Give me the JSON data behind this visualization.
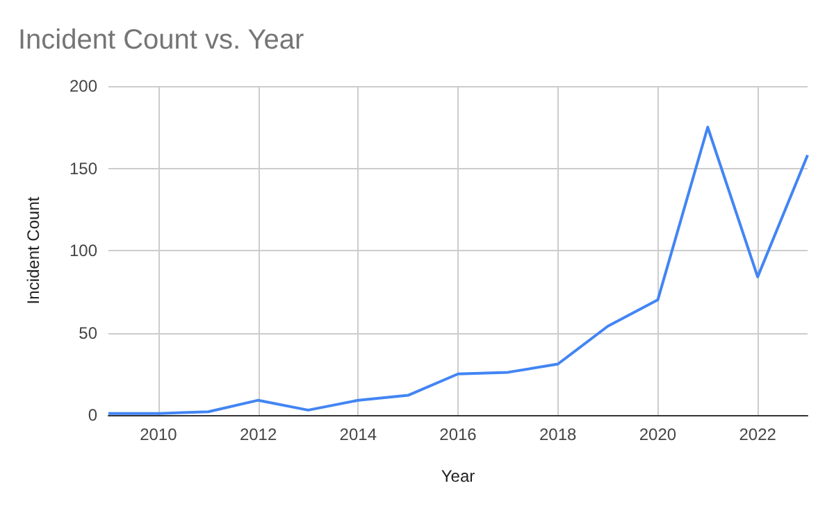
{
  "chart_data": {
    "type": "line",
    "title": "Incident Count vs. Year",
    "xlabel": "Year",
    "ylabel": "Incident Count",
    "x": [
      2009,
      2010,
      2011,
      2012,
      2013,
      2014,
      2015,
      2016,
      2017,
      2018,
      2019,
      2020,
      2021,
      2022,
      2023
    ],
    "series": [
      {
        "color": "#4285f4",
        "values": [
          1,
          1,
          2,
          9,
          3,
          9,
          12,
          25,
          26,
          31,
          54,
          70,
          175,
          84,
          158
        ]
      }
    ],
    "xlim": [
      2009,
      2023
    ],
    "xticks": [
      2010,
      2012,
      2014,
      2016,
      2018,
      2020,
      2022
    ],
    "ylim": [
      0,
      200
    ],
    "yticks": [
      0,
      50,
      100,
      150,
      200
    ],
    "grid": true,
    "marker": "none",
    "line_style": "solid"
  }
}
